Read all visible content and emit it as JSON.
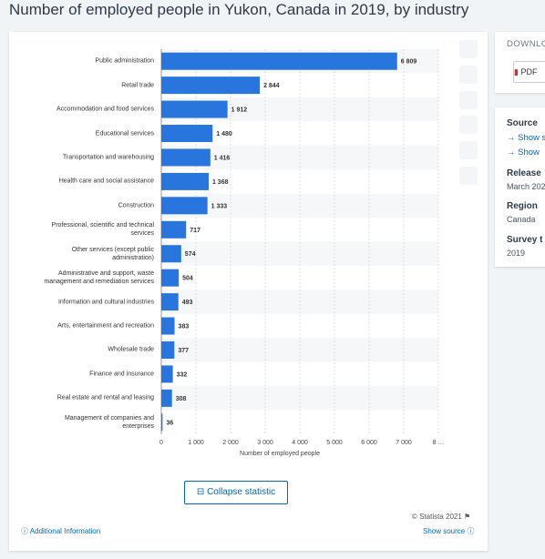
{
  "header": {
    "title": "Number of employed people in Yukon, Canada in 2019, by industry"
  },
  "chart_data": {
    "type": "bar",
    "orientation": "horizontal",
    "categories": [
      "Public administration",
      "Retail trade",
      "Accommodation and food services",
      "Educational services",
      "Transportation and warehousing",
      "Health care and social assistance",
      "Construction",
      "Professional, scientific and technical services",
      "Other services (except public administration)",
      "Administrative and support, waste management and remediation services",
      "Information and cultural industries",
      "Arts, entertainment and recreation",
      "Wholesale trade",
      "Finance and insurance",
      "Real estate and rental and leasing",
      "Management of companies and enterprises"
    ],
    "values": [
      6809,
      2844,
      1912,
      1480,
      1416,
      1368,
      1333,
      717,
      574,
      504,
      493,
      383,
      377,
      332,
      308,
      36
    ],
    "value_labels": [
      "6 809",
      "2 844",
      "1 912",
      "1 480",
      "1 416",
      "1 368",
      "1 333",
      "717",
      "574",
      "504",
      "493",
      "383",
      "377",
      "332",
      "308",
      "36"
    ],
    "color": "#2876dd",
    "xlim": [
      0,
      8000
    ],
    "xticks": [
      0,
      {
        "value": 1000,
        "label": "1 000"
      },
      {
        "value": 2000,
        "label": "2 000"
      },
      {
        "value": 3000,
        "label": "3 000"
      },
      {
        "value": 4000,
        "label": "4 000"
      },
      {
        "value": 5000,
        "label": "5 000"
      },
      {
        "value": 6000,
        "label": "6 000"
      },
      {
        "value": 7000,
        "label": "7 000"
      },
      {
        "value": 8000,
        "label": "8 …"
      }
    ],
    "xlabel": "Number of employed people",
    "grid": true
  },
  "footer": {
    "button": "Collapse statistic",
    "copyright": "© Statista 2021",
    "info": "Additional Information",
    "source": "Show source"
  },
  "sidebar": {
    "download": "DOWNLO",
    "pdf": "PDF",
    "source_title": "Source",
    "source_links": [
      "→ Show s",
      "→ Show"
    ],
    "release_title": "Release",
    "release": "March 202",
    "region_title": "Region",
    "region": "Canada",
    "survey_title": "Survey t",
    "survey": "2019"
  }
}
